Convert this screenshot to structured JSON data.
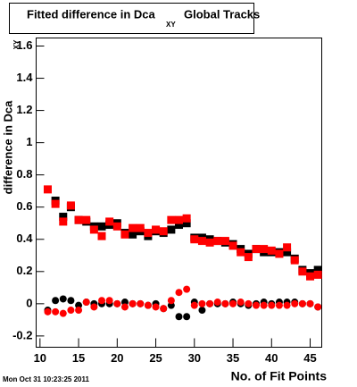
{
  "chart_data": {
    "type": "scatter",
    "title": "Fitted difference in Dca",
    "title_subscript": "XY",
    "title_suffix": "Global Tracks",
    "y_label": "difference in Dca",
    "y_label_subscript": "XY",
    "x_label": "No. of Fit Points",
    "footer": "Mon Oct 31 10:23:25 2011",
    "x": [
      11,
      12,
      13,
      14,
      15,
      16,
      17,
      18,
      19,
      20,
      21,
      22,
      23,
      24,
      25,
      26,
      27,
      28,
      29,
      30,
      31,
      32,
      33,
      34,
      35,
      36,
      37,
      38,
      39,
      40,
      41,
      42,
      43,
      44,
      45,
      46
    ],
    "xlim": [
      9.5,
      46.5
    ],
    "xticks": [
      10,
      15,
      20,
      25,
      30,
      35,
      40,
      45
    ],
    "ylim": [
      -0.27,
      1.65
    ],
    "yticks": [
      -0.2,
      0,
      0.2,
      0.4,
      0.6,
      0.8,
      1,
      1.2,
      1.4,
      1.6
    ],
    "series": [
      {
        "color": "#000000",
        "marker": "square",
        "values": [
          null,
          0.64,
          0.54,
          0.6,
          0.52,
          0.51,
          0.48,
          0.48,
          0.49,
          0.5,
          0.44,
          0.43,
          0.45,
          0.42,
          0.45,
          0.44,
          0.46,
          0.49,
          0.5,
          0.41,
          0.41,
          0.4,
          0.39,
          0.38,
          0.37,
          0.34,
          0.31,
          0.34,
          0.32,
          0.32,
          0.32,
          0.32,
          0.28,
          0.21,
          0.19,
          0.21
        ]
      },
      {
        "color": "#ff0000",
        "marker": "square",
        "values": [
          0.71,
          0.62,
          0.51,
          0.61,
          0.52,
          0.52,
          0.46,
          0.42,
          0.51,
          0.48,
          0.43,
          0.47,
          0.47,
          0.44,
          0.46,
          0.45,
          0.52,
          0.52,
          0.53,
          0.4,
          0.39,
          0.38,
          0.39,
          0.39,
          0.36,
          0.32,
          0.29,
          0.34,
          0.34,
          0.33,
          0.31,
          0.35,
          0.27,
          0.2,
          0.17,
          0.18
        ]
      },
      {
        "color": "#000000",
        "marker": "circle",
        "values": [
          -0.04,
          0.02,
          0.03,
          0.02,
          -0.01,
          0.01,
          0,
          0,
          0,
          0,
          0.01,
          0,
          0,
          -0.01,
          0,
          -0.03,
          -0.01,
          -0.08,
          -0.08,
          0.01,
          -0.04,
          0,
          0,
          0,
          0.01,
          0,
          -0.01,
          0,
          0.01,
          0,
          0.01,
          0.01,
          0.01,
          0,
          0,
          -0.02
        ]
      },
      {
        "color": "#ff0000",
        "marker": "circle",
        "values": [
          -0.05,
          -0.05,
          -0.06,
          -0.04,
          -0.04,
          0.01,
          -0.02,
          0.02,
          0.02,
          0,
          -0.02,
          0,
          0,
          -0.01,
          -0.02,
          -0.03,
          0.02,
          0.07,
          0.09,
          -0.01,
          0,
          0,
          0.01,
          0,
          0,
          0.01,
          0,
          -0.01,
          -0.01,
          -0.01,
          -0.01,
          -0.01,
          0,
          0,
          0,
          -0.02
        ]
      }
    ]
  }
}
